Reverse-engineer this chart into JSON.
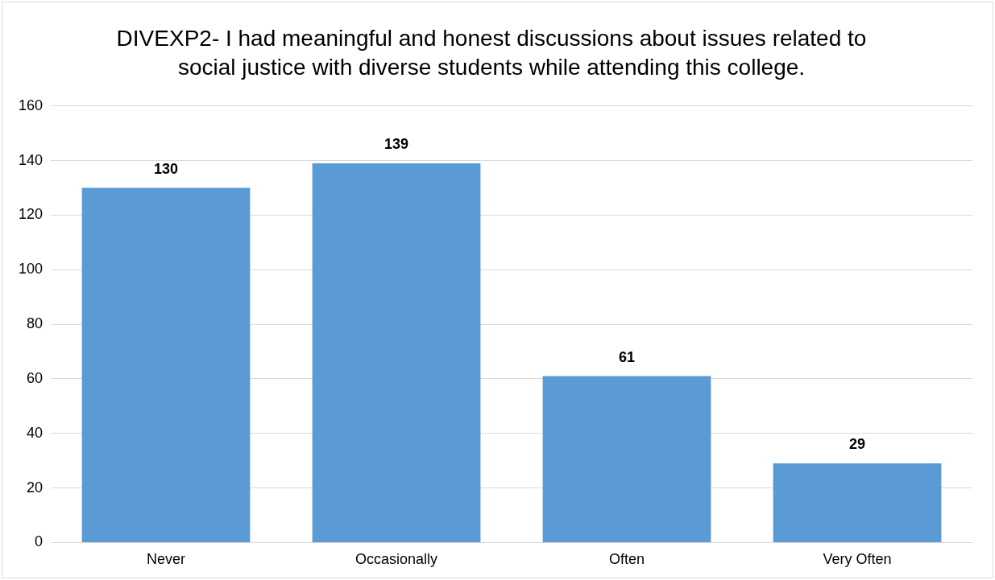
{
  "chart_data": {
    "type": "bar",
    "title": "DIVEXP2- I had meaningful and honest discussions about issues related to social justice with diverse students while attending this college.",
    "categories": [
      "Never",
      "Occasionally",
      "Often",
      "Very Often"
    ],
    "values": [
      130,
      139,
      61,
      29
    ],
    "color": "#5b9bd5",
    "ylim": [
      0,
      160
    ],
    "yticks": [
      0,
      20,
      40,
      60,
      80,
      100,
      120,
      140,
      160
    ],
    "grid": "y",
    "data_labels": true
  }
}
